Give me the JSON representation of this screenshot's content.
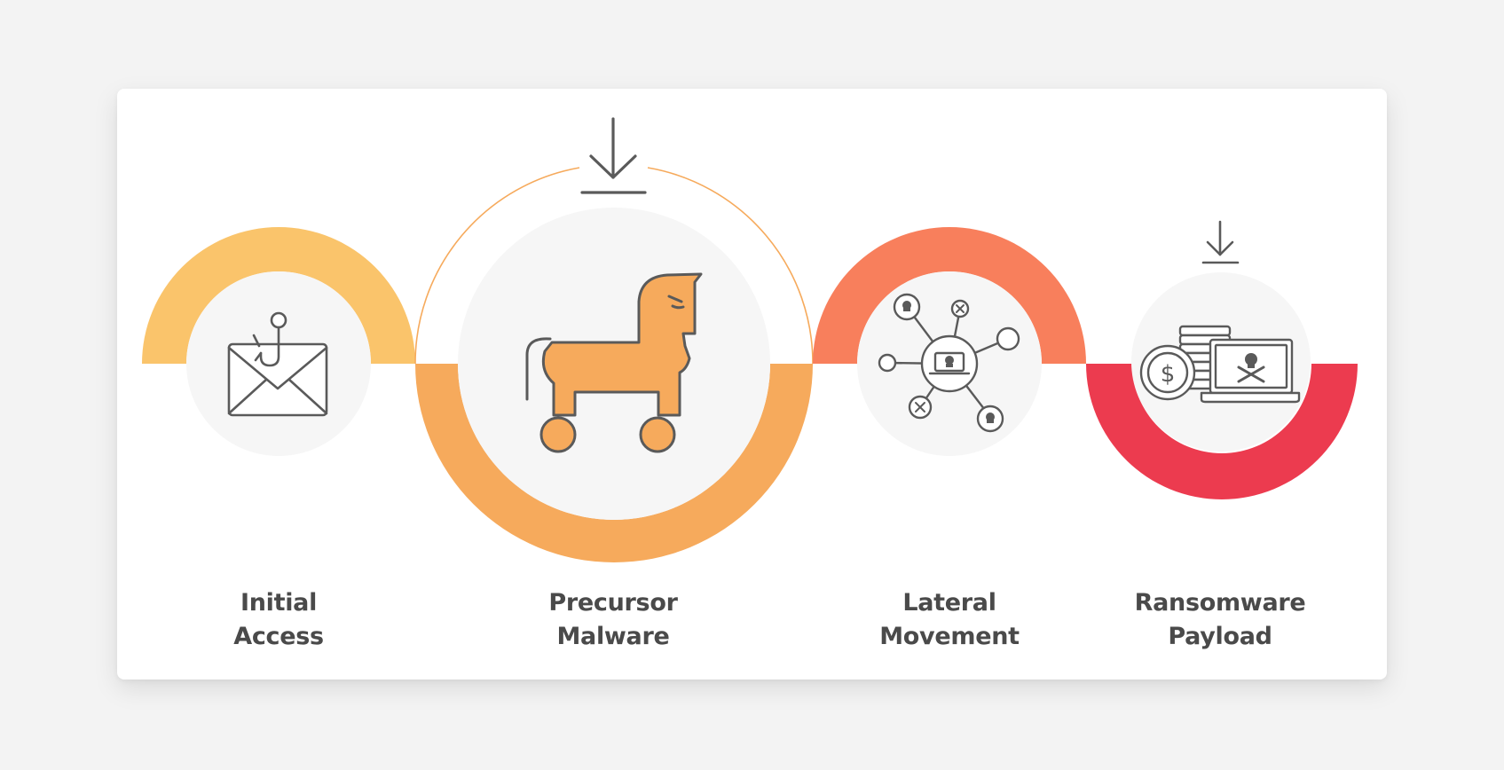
{
  "stages": [
    {
      "line1": "Initial",
      "line2": "Access",
      "color": "#fac46b",
      "icon": "phishing-envelope-icon"
    },
    {
      "line1": "Precursor",
      "line2": "Malware",
      "color": "#f6aa5c",
      "icon": "trojan-horse-icon"
    },
    {
      "line1": "Lateral",
      "line2": "Movement",
      "color": "#f87f5c",
      "icon": "network-spread-icon"
    },
    {
      "line1": "Ransomware",
      "line2": "Payload",
      "color": "#ec3b4f",
      "icon": "ransom-laptop-icon"
    }
  ],
  "colors": {
    "background": "#f3f3f3",
    "card": "#ffffff",
    "icon_fill": "#f6f6f6",
    "stroke": "#5a5a5a",
    "label": "#4a4a4a"
  }
}
